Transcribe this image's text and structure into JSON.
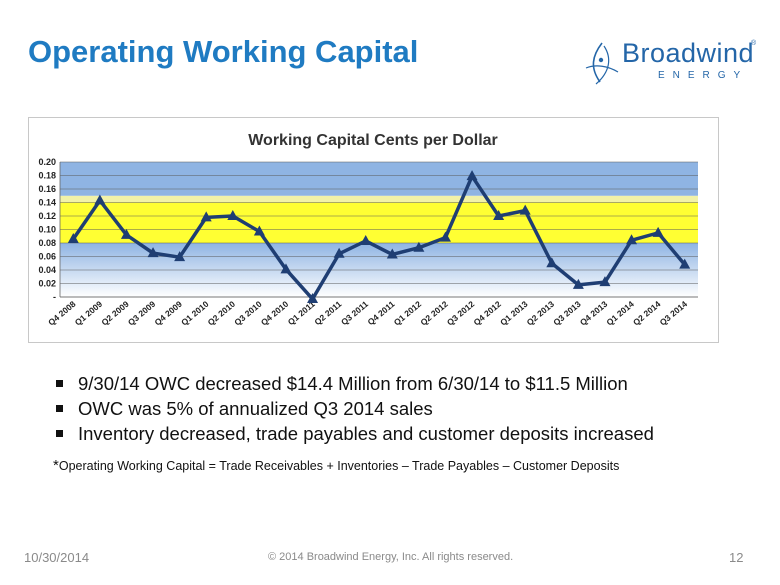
{
  "slide": {
    "title": "Operating Working Capital",
    "logo_name": "Broadwind",
    "logo_sub": "ENERGY",
    "logo_reg": "®",
    "bullets": [
      "9/30/14 OWC decreased $14.4 Million from 6/30/14 to $11.5 Million",
      "OWC was 5% of annualized Q3 2014 sales",
      "Inventory decreased, trade payables and customer deposits increased"
    ],
    "footnote_star": "*",
    "footnote_text": "Operating Working Capital = Trade Receivables + Inventories – Trade Payables – Customer Deposits",
    "footer_date": "10/30/2014",
    "footer_copyright": "© 2014 Broadwind Energy, Inc. All rights reserved.",
    "page_number": "12"
  },
  "colors": {
    "title": "#1f7bc2",
    "line": "#1f3e73",
    "band_blue": "#8fb4e3",
    "band_yellow": "#ffff33",
    "band_light_yellow": "#f2f2a8",
    "grid": "#5a5a5a"
  },
  "chart_data": {
    "type": "line",
    "title": "Working Capital Cents per Dollar",
    "xlabel": "",
    "ylabel": "",
    "ylim": [
      0,
      0.2
    ],
    "yticks": [
      "-",
      "0.02",
      "0.04",
      "0.06",
      "0.08",
      "0.10",
      "0.12",
      "0.14",
      "0.16",
      "0.18",
      "0.20"
    ],
    "grid": true,
    "bands": [
      {
        "from": 0.0,
        "to": 0.08,
        "color": "blue-gradient"
      },
      {
        "from": 0.08,
        "to": 0.14,
        "color": "yellow"
      },
      {
        "from": 0.14,
        "to": 0.15,
        "color": "light-yellow"
      },
      {
        "from": 0.15,
        "to": 0.2,
        "color": "blue"
      }
    ],
    "categories": [
      "Q4 2008",
      "Q1 2009",
      "Q2 2009",
      "Q3 2009",
      "Q4 2009",
      "Q1 2010",
      "Q2 2010",
      "Q3 2010",
      "Q4 2010",
      "Q1 2011",
      "Q2 2011",
      "Q3 2011",
      "Q4 2011",
      "Q1 2012",
      "Q2 2012",
      "Q3 2012",
      "Q4 2012",
      "Q1 2013",
      "Q2 2013",
      "Q3 2013",
      "Q4 2013",
      "Q1 2014",
      "Q2 2014",
      "Q3 2014"
    ],
    "series": [
      {
        "name": "Working Capital Cents per Dollar",
        "values": [
          0.086,
          0.143,
          0.092,
          0.065,
          0.059,
          0.118,
          0.12,
          0.097,
          0.041,
          -0.003,
          0.064,
          0.083,
          0.063,
          0.073,
          0.088,
          0.179,
          0.12,
          0.128,
          0.05,
          0.018,
          0.022,
          0.084,
          0.095,
          0.048
        ],
        "marker": "triangle"
      }
    ]
  }
}
